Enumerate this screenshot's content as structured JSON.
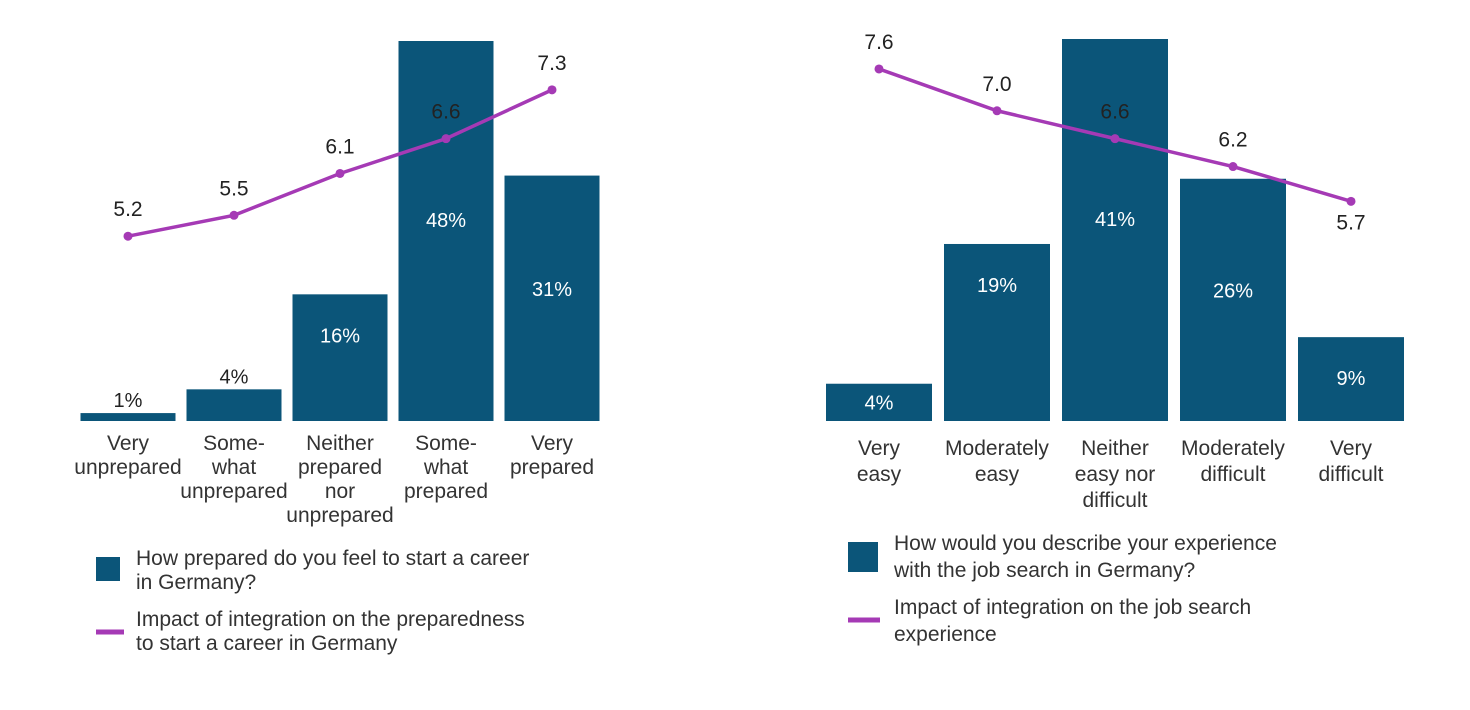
{
  "chart_data": [
    {
      "type": "bar",
      "bar_color": "#0b5579",
      "line_color": "#a53ab5",
      "categories": [
        [
          "Very",
          "unprepared"
        ],
        [
          "Some-",
          "what",
          "unprepared"
        ],
        [
          "Neither",
          "prepared",
          "nor",
          "unprepared"
        ],
        [
          "Some-",
          "what",
          "prepared"
        ],
        [
          "Very",
          "prepared"
        ]
      ],
      "bar_values": [
        1,
        4,
        16,
        48,
        31
      ],
      "bar_labels": [
        "1%",
        "4%",
        "16%",
        "48%",
        "31%"
      ],
      "line_values": [
        5.2,
        5.5,
        6.1,
        6.6,
        7.3
      ],
      "line_labels": [
        "5.2",
        "5.5",
        "6.1",
        "6.6",
        "7.3"
      ],
      "line_range": [
        4.5,
        7.8
      ],
      "bar_max": 48,
      "legend": {
        "bar": [
          "How prepared do you feel to start a career",
          "in Germany?"
        ],
        "line": [
          "Impact of integration on the preparedness",
          "to start a career in Germany"
        ]
      }
    },
    {
      "type": "bar",
      "bar_color": "#0b5579",
      "line_color": "#a53ab5",
      "categories": [
        [
          "Very",
          "easy"
        ],
        [
          "Moderately",
          "easy"
        ],
        [
          "Neither",
          "easy nor",
          "difficult"
        ],
        [
          "Moderately",
          "difficult"
        ],
        [
          "Very",
          "difficult"
        ]
      ],
      "bar_values": [
        4,
        19,
        41,
        26,
        9
      ],
      "bar_labels": [
        "4%",
        "19%",
        "41%",
        "26%",
        "9%"
      ],
      "line_values": [
        7.6,
        7.0,
        6.6,
        6.2,
        5.7
      ],
      "line_labels": [
        "7.6",
        "7.0",
        "6.6",
        "6.2",
        "5.7"
      ],
      "line_range": [
        4.5,
        7.8
      ],
      "bar_max": 41,
      "legend": {
        "bar": [
          "How would you describe your experience",
          "with the job search in Germany?"
        ],
        "line": [
          "Impact of integration on the job search",
          "experience"
        ]
      }
    }
  ]
}
